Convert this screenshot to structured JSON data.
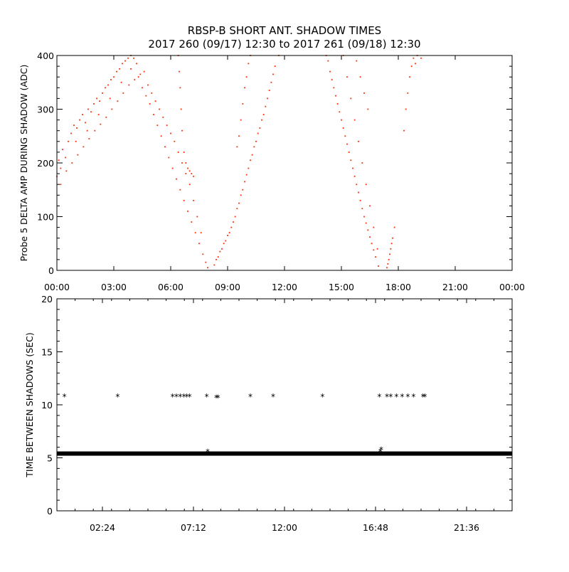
{
  "title_line1": "RBSP-B SHORT ANT. SHADOW TIMES",
  "title_line2": "2017 260 (09/17) 12:30 to 2017 261 (09/18) 12:30",
  "colors": {
    "points_top": "#ff2a00",
    "points_bottom": "#000000",
    "axes": "#000000",
    "background": "#ffffff"
  },
  "chart_data": [
    {
      "type": "scatter",
      "ylabel": "Probe 5 DELTA AMP DURING SHADOW (ADC)",
      "xlabel": "",
      "x_unit": "hours of day",
      "xlim": [
        0,
        24
      ],
      "ylim": [
        0,
        400
      ],
      "x_tick_labels": [
        "00:00",
        "03:00",
        "06:00",
        "09:00",
        "12:00",
        "15:00",
        "18:00",
        "21:00",
        "00:00"
      ],
      "y_tick_labels": [
        "0",
        "100",
        "200",
        "300",
        "400"
      ],
      "grid": false,
      "series": [
        {
          "points": [
            [
              0.0,
              175
            ],
            [
              0.1,
              205
            ],
            [
              0.2,
              190
            ],
            [
              0.3,
              225
            ],
            [
              0.45,
              210
            ],
            [
              0.6,
              240
            ],
            [
              0.75,
              255
            ],
            [
              0.9,
              270
            ],
            [
              1.05,
              265
            ],
            [
              1.2,
              280
            ],
            [
              1.35,
              290
            ],
            [
              1.5,
              275
            ],
            [
              1.65,
              300
            ],
            [
              1.8,
              295
            ],
            [
              1.95,
              310
            ],
            [
              2.1,
              320
            ],
            [
              2.25,
              315
            ],
            [
              2.4,
              330
            ],
            [
              2.55,
              340
            ],
            [
              2.7,
              345
            ],
            [
              2.85,
              355
            ],
            [
              3.0,
              360
            ],
            [
              3.15,
              370
            ],
            [
              3.3,
              375
            ],
            [
              3.45,
              385
            ],
            [
              3.6,
              390
            ],
            [
              3.75,
              395
            ],
            [
              3.9,
              400
            ],
            [
              4.05,
              395
            ],
            [
              4.2,
              385
            ],
            [
              0.2,
              160
            ],
            [
              0.5,
              185
            ],
            [
              0.8,
              200
            ],
            [
              1.1,
              215
            ],
            [
              1.4,
              230
            ],
            [
              1.7,
              245
            ],
            [
              2.0,
              260
            ],
            [
              2.3,
              272
            ],
            [
              2.6,
              285
            ],
            [
              2.9,
              300
            ],
            [
              3.2,
              315
            ],
            [
              3.5,
              330
            ],
            [
              3.8,
              345
            ],
            [
              4.1,
              355
            ],
            [
              4.4,
              365
            ],
            [
              4.6,
              370
            ],
            [
              1.0,
              240
            ],
            [
              1.6,
              260
            ],
            [
              2.2,
              290
            ],
            [
              2.8,
              320
            ],
            [
              3.4,
              350
            ],
            [
              3.9,
              375
            ],
            [
              4.3,
              360
            ],
            [
              4.5,
              340
            ],
            [
              4.7,
              325
            ],
            [
              4.9,
              310
            ],
            [
              5.1,
              290
            ],
            [
              5.3,
              270
            ],
            [
              5.5,
              250
            ],
            [
              5.7,
              230
            ],
            [
              5.9,
              210
            ],
            [
              6.1,
              190
            ],
            [
              6.3,
              170
            ],
            [
              6.5,
              150
            ],
            [
              6.7,
              130
            ],
            [
              6.9,
              110
            ],
            [
              7.1,
              90
            ],
            [
              7.3,
              70
            ],
            [
              7.5,
              50
            ],
            [
              7.7,
              30
            ],
            [
              7.85,
              15
            ],
            [
              7.95,
              5
            ],
            [
              4.8,
              345
            ],
            [
              5.0,
              330
            ],
            [
              5.2,
              315
            ],
            [
              5.4,
              300
            ],
            [
              5.6,
              285
            ],
            [
              5.8,
              270
            ],
            [
              6.0,
              255
            ],
            [
              6.2,
              240
            ],
            [
              6.4,
              220
            ],
            [
              6.6,
              200
            ],
            [
              6.8,
              180
            ],
            [
              7.0,
              160
            ],
            [
              7.2,
              130
            ],
            [
              7.4,
              100
            ],
            [
              7.6,
              70
            ],
            [
              6.4,
              400
            ],
            [
              6.45,
              370
            ],
            [
              6.5,
              340
            ],
            [
              6.55,
              300
            ],
            [
              6.6,
              260
            ],
            [
              6.7,
              220
            ],
            [
              6.8,
              200
            ],
            [
              6.9,
              190
            ],
            [
              7.0,
              185
            ],
            [
              7.1,
              180
            ],
            [
              7.2,
              175
            ],
            [
              8.3,
              10
            ],
            [
              8.5,
              25
            ],
            [
              8.7,
              40
            ],
            [
              8.9,
              55
            ],
            [
              9.1,
              70
            ],
            [
              9.3,
              90
            ],
            [
              9.5,
              115
            ],
            [
              9.7,
              140
            ],
            [
              9.9,
              165
            ],
            [
              10.1,
              190
            ],
            [
              10.3,
              215
            ],
            [
              10.5,
              240
            ],
            [
              10.7,
              265
            ],
            [
              10.9,
              290
            ],
            [
              11.1,
              320
            ],
            [
              11.3,
              350
            ],
            [
              11.5,
              380
            ],
            [
              11.7,
              400
            ],
            [
              8.4,
              20
            ],
            [
              8.6,
              35
            ],
            [
              8.8,
              50
            ],
            [
              9.0,
              65
            ],
            [
              9.2,
              80
            ],
            [
              9.4,
              100
            ],
            [
              9.6,
              125
            ],
            [
              9.8,
              150
            ],
            [
              10.0,
              178
            ],
            [
              10.2,
              205
            ],
            [
              10.4,
              230
            ],
            [
              10.6,
              255
            ],
            [
              10.8,
              280
            ],
            [
              11.0,
              305
            ],
            [
              11.2,
              335
            ],
            [
              11.4,
              365
            ],
            [
              9.6,
              250
            ],
            [
              9.7,
              280
            ],
            [
              9.8,
              310
            ],
            [
              9.9,
              340
            ],
            [
              10.0,
              360
            ],
            [
              10.1,
              385
            ],
            [
              10.2,
              400
            ],
            [
              9.5,
              230
            ],
            [
              14.2,
              400
            ],
            [
              14.4,
              370
            ],
            [
              14.6,
              340
            ],
            [
              14.8,
              310
            ],
            [
              15.0,
              280
            ],
            [
              15.2,
              250
            ],
            [
              15.4,
              220
            ],
            [
              15.6,
              190
            ],
            [
              15.8,
              160
            ],
            [
              16.0,
              130
            ],
            [
              16.2,
              100
            ],
            [
              16.4,
              75
            ],
            [
              16.6,
              50
            ],
            [
              16.8,
              25
            ],
            [
              16.95,
              8
            ],
            [
              15.1,
              400
            ],
            [
              15.3,
              360
            ],
            [
              15.5,
              320
            ],
            [
              15.7,
              280
            ],
            [
              15.9,
              240
            ],
            [
              16.1,
              200
            ],
            [
              16.3,
              160
            ],
            [
              16.5,
              120
            ],
            [
              16.7,
              80
            ],
            [
              16.9,
              40
            ],
            [
              14.3,
              390
            ],
            [
              14.5,
              355
            ],
            [
              14.7,
              325
            ],
            [
              14.9,
              295
            ],
            [
              15.1,
              265
            ],
            [
              15.3,
              235
            ],
            [
              15.5,
              205
            ],
            [
              15.7,
              175
            ],
            [
              15.9,
              145
            ],
            [
              16.1,
              115
            ],
            [
              16.3,
              88
            ],
            [
              16.5,
              62
            ],
            [
              16.7,
              38
            ],
            [
              17.4,
              5
            ],
            [
              17.5,
              20
            ],
            [
              17.6,
              40
            ],
            [
              17.7,
              60
            ],
            [
              17.8,
              80
            ],
            [
              18.3,
              260
            ],
            [
              18.4,
              300
            ],
            [
              18.5,
              330
            ],
            [
              18.6,
              360
            ],
            [
              18.7,
              380
            ],
            [
              18.8,
              395
            ],
            [
              19.0,
              400
            ],
            [
              19.2,
              395
            ],
            [
              18.9,
              385
            ],
            [
              17.55,
              30
            ],
            [
              17.65,
              50
            ],
            [
              17.45,
              12
            ],
            [
              16.4,
              300
            ],
            [
              16.2,
              330
            ],
            [
              16.0,
              360
            ],
            [
              15.8,
              390
            ]
          ]
        }
      ]
    },
    {
      "type": "scatter",
      "ylabel": "TIME BETWEEN SHADOWS (SEC)",
      "xlabel": "",
      "x_unit": "hours of day",
      "xlim": [
        0,
        24
      ],
      "ylim": [
        0,
        20
      ],
      "x_tick_labels": [
        "02:24",
        "07:12",
        "12:00",
        "16:48",
        "21:36"
      ],
      "y_tick_labels": [
        "0",
        "5",
        "10",
        "15",
        "20"
      ],
      "grid": false,
      "baseline": {
        "value": 5.4,
        "x_range": [
          0,
          24
        ]
      },
      "series": [
        {
          "points": [
            [
              0.4,
              10.8
            ],
            [
              3.2,
              10.8
            ],
            [
              6.1,
              10.8
            ],
            [
              6.3,
              10.8
            ],
            [
              6.5,
              10.8
            ],
            [
              6.7,
              10.8
            ],
            [
              6.85,
              10.8
            ],
            [
              7.0,
              10.8
            ],
            [
              7.9,
              10.8
            ],
            [
              8.4,
              10.7
            ],
            [
              8.5,
              10.7
            ],
            [
              10.2,
              10.8
            ],
            [
              11.4,
              10.8
            ],
            [
              14.0,
              10.8
            ],
            [
              17.0,
              10.8
            ],
            [
              17.4,
              10.8
            ],
            [
              17.6,
              10.8
            ],
            [
              17.9,
              10.8
            ],
            [
              18.2,
              10.8
            ],
            [
              18.5,
              10.8
            ],
            [
              18.8,
              10.8
            ],
            [
              19.3,
              10.8
            ],
            [
              19.4,
              10.8
            ],
            [
              7.95,
              5.6
            ],
            [
              17.05,
              5.6
            ],
            [
              17.1,
              5.8
            ]
          ]
        }
      ]
    }
  ]
}
